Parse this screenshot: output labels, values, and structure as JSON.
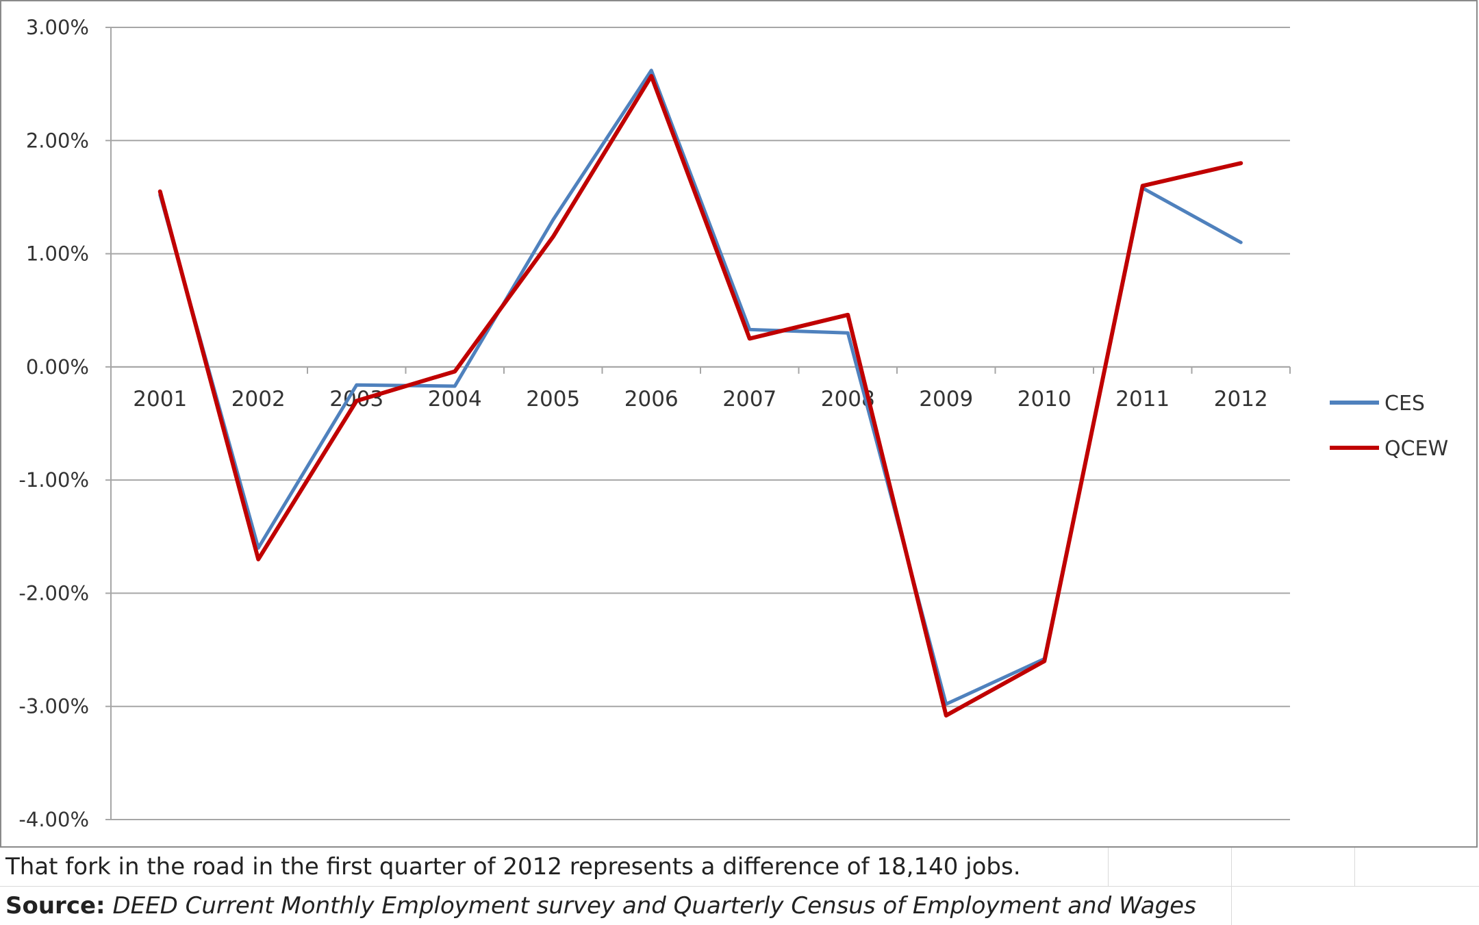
{
  "chart_data": {
    "type": "line",
    "categories": [
      "2001",
      "2002",
      "2003",
      "2004",
      "2005",
      "2006",
      "2007",
      "2008",
      "2009",
      "2010",
      "2011",
      "2012"
    ],
    "series": [
      {
        "name": "CES",
        "color": "#4f81bd",
        "values": [
          1.52,
          -1.6,
          -0.16,
          -0.17,
          1.3,
          2.62,
          0.33,
          0.3,
          -2.98,
          -2.58,
          1.58,
          1.1
        ]
      },
      {
        "name": "QCEW",
        "color": "#c00000",
        "values": [
          1.55,
          -1.7,
          -0.3,
          -0.04,
          1.15,
          2.57,
          0.25,
          0.46,
          -3.08,
          -2.6,
          1.6,
          1.8
        ]
      }
    ],
    "y_ticks": [
      "3.00%",
      "2.00%",
      "1.00%",
      "0.00%",
      "-1.00%",
      "-2.00%",
      "-3.00%",
      "-4.00%"
    ],
    "ylim": [
      -4,
      3
    ],
    "grid": true,
    "legend_position": "right"
  },
  "caption": "That fork in the road in the first quarter of 2012 represents a difference of 18,140 jobs.",
  "source": {
    "label": "Source:",
    "text": " DEED Current Monthly Employment survey and Quarterly Census of Employment and Wages"
  }
}
